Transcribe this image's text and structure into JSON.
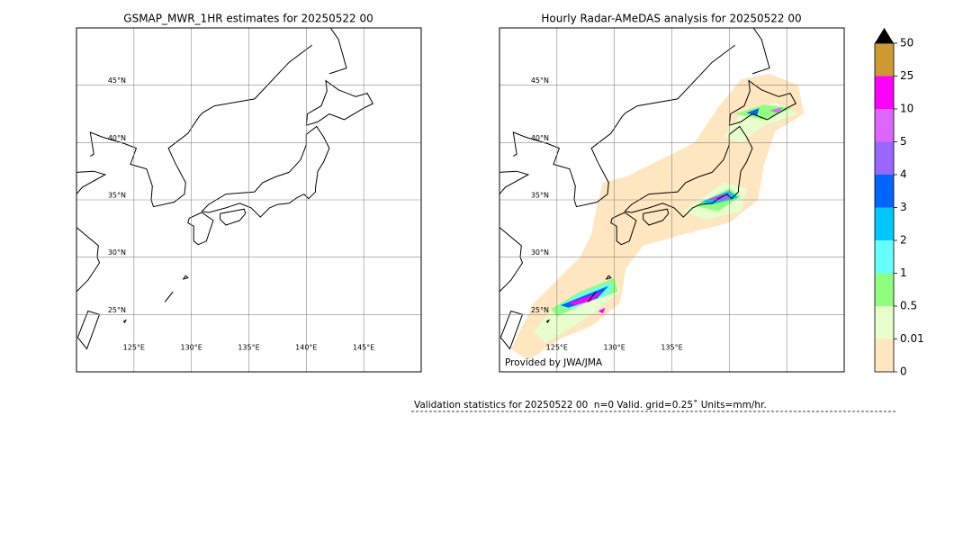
{
  "maps": [
    {
      "title": "GSMAP_MWR_1HR estimates for 20250522 00",
      "xlim": [
        120,
        150
      ],
      "ylim": [
        20,
        50
      ],
      "xticks": [
        {
          "value": 125,
          "label": "125°E"
        },
        {
          "value": 130,
          "label": "130°E"
        },
        {
          "value": 135,
          "label": "135°E"
        },
        {
          "value": 140,
          "label": "140°E"
        },
        {
          "value": 145,
          "label": "145°E"
        }
      ],
      "yticks": [
        {
          "value": 25,
          "label": "25°N"
        },
        {
          "value": 30,
          "label": "30°N"
        },
        {
          "value": 35,
          "label": "35°N"
        },
        {
          "value": 40,
          "label": "40°N"
        },
        {
          "value": 45,
          "label": "45°N"
        }
      ]
    },
    {
      "title": "Hourly Radar-AMeDAS analysis for 20250522 00",
      "xlim": [
        120,
        150
      ],
      "ylim": [
        20,
        50
      ],
      "xticks": [
        {
          "value": 125,
          "label": "125°E"
        },
        {
          "value": 130,
          "label": "130°E"
        },
        {
          "value": 135,
          "label": "135°E"
        }
      ],
      "xgrid": [
        140,
        145
      ],
      "yticks": [
        {
          "value": 25,
          "label": "25°N"
        },
        {
          "value": 30,
          "label": "30°N"
        },
        {
          "value": 35,
          "label": "35°N"
        },
        {
          "value": 40,
          "label": "40°N"
        },
        {
          "value": 45,
          "label": "45°N"
        }
      ],
      "credit": "Provided by JWA/JMA"
    }
  ],
  "colorbar": {
    "levels": [
      0,
      0.01,
      0.5,
      1,
      2,
      3,
      4,
      5,
      10,
      25,
      50
    ],
    "colors": [
      "#fde6c0",
      "#e6ffcc",
      "#90ff80",
      "#66ffff",
      "#00c8ff",
      "#0064ff",
      "#9966ff",
      "#dd66ff",
      "#ff00ff",
      "#cc9933"
    ],
    "extend_color": "#000000"
  },
  "validation": "Validation statistics for 20250522 00  n=0 Valid. grid=0.25˚ Units=mm/hr."
}
